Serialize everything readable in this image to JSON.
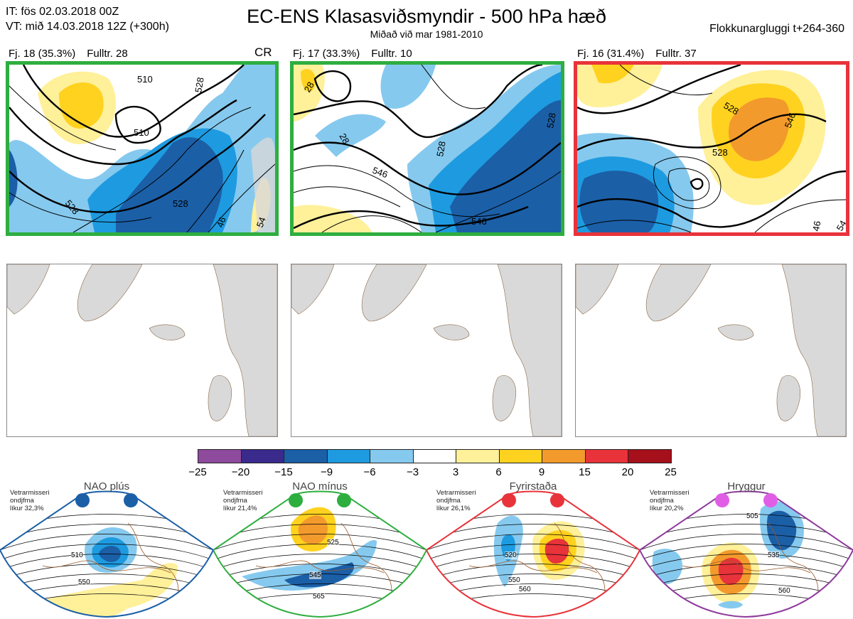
{
  "header": {
    "init_line": "IT: fös 02.03.2018 00Z",
    "valid_line": "VT: mið 14.03.2018 12Z  (+300h)",
    "title": "EC-ENS Klasasviðsmyndir - 500 hPa hæð",
    "subtitle": "Miðað við mar 1981-2010",
    "window": "Flokkunargluggi t+264-360"
  },
  "clusters": [
    {
      "label": "Fj. 18 (35.3%)",
      "control": "Fulltr. 28",
      "tag": "CR",
      "border_color": "#2eae3f",
      "contour_labels": [
        "510",
        "510",
        "528",
        "528",
        "528",
        "46",
        "54"
      ]
    },
    {
      "label": "Fj. 17 (33.3%)",
      "control": "Fulltr. 10",
      "tag": "",
      "border_color": "#2eae3f",
      "contour_labels": [
        "546",
        "528",
        "528",
        "546",
        "28",
        "28"
      ]
    },
    {
      "label": "Fj. 16 (31.4%)",
      "control": "Fulltr. 37",
      "tag": "",
      "border_color": "#e8333a",
      "contour_labels": [
        "528",
        "528",
        "546",
        "46",
        "54"
      ]
    }
  ],
  "colorbar": {
    "ticks": [
      "−25",
      "−20",
      "−15",
      "−9",
      "−6",
      "−3",
      "3",
      "6",
      "9",
      "15",
      "20",
      "25"
    ],
    "colors": [
      "#8e4a9c",
      "#3a2a8c",
      "#1b5fa7",
      "#1e9be0",
      "#86c9ee",
      "#ffffff",
      "#fff09a",
      "#ffd21f",
      "#f39a2c",
      "#e8333a",
      "#a5101b"
    ]
  },
  "regimes": [
    {
      "name": "NAO plús",
      "text_lines": [
        "Vetrarmisseri",
        "ondjfma",
        "líkur 32,3%"
      ],
      "color": "#1b5fa7",
      "contour_labels": [
        "510",
        "550"
      ]
    },
    {
      "name": "NAO mínus",
      "text_lines": [
        "Vetrarmisseri",
        "ondjfma",
        "líkur 21,4%"
      ],
      "color": "#2eae3f",
      "contour_labels": [
        "525",
        "545",
        "565"
      ]
    },
    {
      "name": "Fyrirstaða",
      "text_lines": [
        "Vetrarmisseri",
        "ondjfma",
        "líkur 26,1%"
      ],
      "color": "#e8333a",
      "contour_labels": [
        "520",
        "550",
        "560"
      ]
    },
    {
      "name": "Hryggur",
      "text_lines": [
        "Vetrarmisseri",
        "ondjfma",
        "líkur 20,2%"
      ],
      "color": "#e05ee6",
      "border_color": "#8e3a9c",
      "contour_labels": [
        "505",
        "535",
        "560"
      ]
    }
  ]
}
